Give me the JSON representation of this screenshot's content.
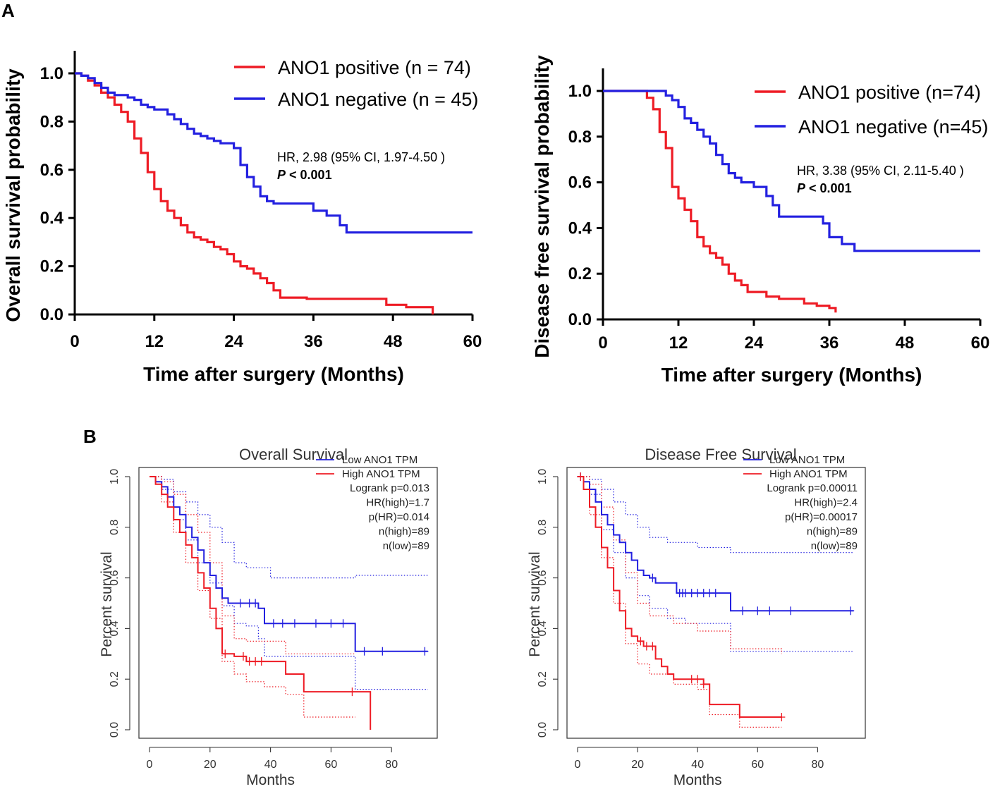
{
  "figure": {
    "panel_a_label": "A",
    "panel_b_label": "B"
  },
  "chart_data": [
    {
      "id": "A1",
      "type": "line",
      "subtype": "kaplan-meier",
      "title": "",
      "xlabel": "Time after surgery (Months)",
      "ylabel": "Overall survival probability",
      "xlim": [
        0,
        60
      ],
      "ylim": [
        0,
        1.0
      ],
      "xticks": [
        "0",
        "12",
        "24",
        "36",
        "48",
        "60"
      ],
      "yticks": [
        "0.0",
        "0.2",
        "0.4",
        "0.6",
        "0.8",
        "1.0"
      ],
      "legend_position": "top-right",
      "stats": {
        "hr_text": "HR, 2.98 (95% CI, 1.97-4.50 )",
        "p_label": "P",
        "p_value": " < 0.001"
      },
      "series": [
        {
          "name": "ANO1 positive (n = 74)",
          "color": "#ee1c25",
          "x": [
            0,
            1,
            2,
            3,
            4,
            5,
            6,
            7,
            8,
            9,
            10,
            11,
            12,
            13,
            14,
            15,
            16,
            17,
            18,
            19,
            20,
            21,
            22,
            23,
            24,
            25,
            26,
            27,
            28,
            29,
            30,
            31,
            35,
            40,
            44,
            47,
            50,
            54
          ],
          "y": [
            1.0,
            0.99,
            0.97,
            0.95,
            0.92,
            0.9,
            0.87,
            0.84,
            0.8,
            0.73,
            0.67,
            0.59,
            0.52,
            0.47,
            0.43,
            0.4,
            0.37,
            0.34,
            0.32,
            0.31,
            0.3,
            0.28,
            0.27,
            0.25,
            0.22,
            0.2,
            0.19,
            0.17,
            0.15,
            0.13,
            0.1,
            0.07,
            0.065,
            0.065,
            0.065,
            0.04,
            0.03,
            0.0
          ]
        },
        {
          "name": "ANO1 negative (n = 45)",
          "color": "#2320e0",
          "x": [
            0,
            1,
            2,
            3,
            4,
            5,
            6,
            7,
            8,
            9,
            10,
            11,
            12,
            13,
            14,
            15,
            16,
            17,
            18,
            19,
            20,
            21,
            22,
            23,
            24,
            25,
            26,
            27,
            28,
            29,
            30,
            32,
            34,
            36,
            38,
            40,
            41,
            44,
            60
          ],
          "y": [
            1.0,
            0.99,
            0.98,
            0.96,
            0.94,
            0.92,
            0.91,
            0.91,
            0.9,
            0.89,
            0.87,
            0.86,
            0.85,
            0.85,
            0.83,
            0.81,
            0.79,
            0.77,
            0.75,
            0.74,
            0.73,
            0.72,
            0.71,
            0.71,
            0.69,
            0.62,
            0.57,
            0.53,
            0.49,
            0.47,
            0.46,
            0.46,
            0.46,
            0.43,
            0.41,
            0.37,
            0.34,
            0.34,
            0.34
          ]
        }
      ]
    },
    {
      "id": "A2",
      "type": "line",
      "subtype": "kaplan-meier",
      "title": "",
      "xlabel": "Time after surgery (Months)",
      "ylabel": "Disease free survival probability",
      "xlim": [
        0,
        60
      ],
      "ylim": [
        0,
        1.0
      ],
      "xticks": [
        "0",
        "12",
        "24",
        "36",
        "48",
        "60"
      ],
      "yticks": [
        "0.0",
        "0.2",
        "0.4",
        "0.6",
        "0.8",
        "1.0"
      ],
      "legend_position": "top-right",
      "stats": {
        "hr_text": "HR, 3.38 (95% CI, 2.11-5.40 )",
        "p_label": "P",
        "p_value": " < 0.001"
      },
      "series": [
        {
          "name": "ANO1 positive (n=74)",
          "color": "#ee1c25",
          "x": [
            0,
            6,
            7,
            8,
            9,
            10,
            11,
            12,
            13,
            14,
            15,
            16,
            17,
            18,
            19,
            20,
            21,
            22,
            23,
            24,
            26,
            28,
            30,
            32,
            34,
            36,
            37
          ],
          "y": [
            1.0,
            1.0,
            0.97,
            0.92,
            0.82,
            0.75,
            0.58,
            0.53,
            0.48,
            0.43,
            0.36,
            0.32,
            0.29,
            0.27,
            0.24,
            0.2,
            0.17,
            0.15,
            0.12,
            0.12,
            0.1,
            0.09,
            0.09,
            0.07,
            0.06,
            0.05,
            0.03
          ]
        },
        {
          "name": "ANO1 negative (n=45)",
          "color": "#2320e0",
          "x": [
            0,
            9,
            10,
            11,
            12,
            13,
            14,
            15,
            16,
            17,
            18,
            19,
            20,
            21,
            22,
            24,
            26,
            27,
            28,
            30,
            32,
            34,
            35,
            36,
            38,
            40,
            45,
            60
          ],
          "y": [
            1.0,
            1.0,
            0.98,
            0.96,
            0.93,
            0.88,
            0.86,
            0.83,
            0.8,
            0.77,
            0.72,
            0.68,
            0.64,
            0.62,
            0.6,
            0.58,
            0.54,
            0.5,
            0.45,
            0.45,
            0.45,
            0.45,
            0.42,
            0.36,
            0.33,
            0.3,
            0.3,
            0.3
          ]
        }
      ]
    },
    {
      "id": "B1",
      "type": "line",
      "subtype": "kaplan-meier",
      "title": "Overall Survival",
      "xlabel": "Months",
      "ylabel": "Percent survival",
      "xlim": [
        0,
        92
      ],
      "ylim": [
        0,
        1.0
      ],
      "xticks": [
        "0",
        "20",
        "40",
        "60",
        "80"
      ],
      "yticks": [
        "0.0",
        "0.2",
        "0.4",
        "0.6",
        "0.8",
        "1.0"
      ],
      "legend_position": "top-right",
      "stats_lines": [
        "Logrank p=0.013",
        "HR(high)=1.7",
        "p(HR)=0.014",
        "n(high)=89",
        "n(low)=89"
      ],
      "series": [
        {
          "name": "Low ANO1 TPM",
          "color": "#2320e0",
          "x": [
            0,
            2,
            4,
            6,
            8,
            10,
            12,
            14,
            16,
            18,
            20,
            22,
            24,
            26,
            28,
            30,
            36,
            38,
            45,
            55,
            67,
            68,
            72,
            92
          ],
          "y": [
            1.0,
            0.98,
            0.96,
            0.92,
            0.88,
            0.85,
            0.8,
            0.76,
            0.71,
            0.66,
            0.61,
            0.56,
            0.52,
            0.5,
            0.5,
            0.5,
            0.48,
            0.42,
            0.42,
            0.42,
            0.42,
            0.31,
            0.31,
            0.31
          ],
          "censor_x": [
            30,
            33,
            35,
            41,
            44,
            48,
            55,
            60,
            64,
            71,
            77,
            91
          ]
        },
        {
          "name": "High ANO1 TPM",
          "color": "#ee1c25",
          "x": [
            0,
            2,
            4,
            6,
            8,
            10,
            12,
            14,
            16,
            18,
            20,
            22,
            24,
            28,
            32,
            38,
            45,
            51,
            60,
            72,
            73
          ],
          "y": [
            1.0,
            0.97,
            0.93,
            0.88,
            0.83,
            0.78,
            0.73,
            0.68,
            0.62,
            0.56,
            0.48,
            0.4,
            0.3,
            0.29,
            0.27,
            0.27,
            0.22,
            0.15,
            0.15,
            0.15,
            0.0
          ],
          "censor_x": [
            25,
            31,
            33,
            35,
            37,
            67
          ]
        },
        {
          "name": "Low upper CI",
          "color": "#2320e0",
          "dashed": true,
          "x": [
            0,
            4,
            8,
            12,
            16,
            20,
            24,
            28,
            32,
            36,
            40,
            50,
            68,
            92
          ],
          "y": [
            1.0,
            0.99,
            0.94,
            0.9,
            0.85,
            0.8,
            0.74,
            0.66,
            0.64,
            0.64,
            0.6,
            0.6,
            0.61,
            0.61
          ]
        },
        {
          "name": "Low lower CI",
          "color": "#2320e0",
          "dashed": true,
          "x": [
            0,
            4,
            8,
            12,
            16,
            20,
            24,
            28,
            32,
            36,
            38,
            40,
            68,
            92
          ],
          "y": [
            1.0,
            0.95,
            0.83,
            0.75,
            0.66,
            0.58,
            0.49,
            0.42,
            0.41,
            0.36,
            0.29,
            0.29,
            0.16,
            0.16
          ]
        },
        {
          "name": "High upper CI",
          "color": "#ee1c25",
          "dashed": true,
          "x": [
            0,
            4,
            8,
            12,
            16,
            20,
            24,
            28,
            32,
            38,
            45,
            60,
            68
          ],
          "y": [
            1.0,
            0.98,
            0.93,
            0.85,
            0.78,
            0.66,
            0.45,
            0.36,
            0.35,
            0.35,
            0.3,
            0.3,
            0.3
          ]
        },
        {
          "name": "High lower CI",
          "color": "#ee1c25",
          "dashed": true,
          "x": [
            0,
            4,
            8,
            12,
            16,
            20,
            24,
            28,
            32,
            38,
            45,
            51,
            60,
            68
          ],
          "y": [
            1.0,
            0.9,
            0.78,
            0.66,
            0.55,
            0.44,
            0.27,
            0.22,
            0.19,
            0.17,
            0.14,
            0.05,
            0.05,
            0.05
          ]
        }
      ]
    },
    {
      "id": "B2",
      "type": "line",
      "subtype": "kaplan-meier",
      "title": "Disease Free Survival",
      "xlabel": "Months",
      "ylabel": "Percent survival",
      "xlim": [
        0,
        92
      ],
      "ylim": [
        0,
        1.0
      ],
      "xticks": [
        "0",
        "20",
        "40",
        "60",
        "80"
      ],
      "yticks": [
        "0.0",
        "0.2",
        "0.4",
        "0.6",
        "0.8",
        "1.0"
      ],
      "legend_position": "top-right",
      "stats_lines": [
        "Logrank p=0.00011",
        "HR(high)=2.4",
        "p(HR)=0.00017",
        "n(high)=89",
        "n(low)=89"
      ],
      "series": [
        {
          "name": "Low ANO1 TPM",
          "color": "#2320e0",
          "x": [
            0,
            2,
            4,
            6,
            8,
            10,
            12,
            14,
            16,
            18,
            20,
            22,
            24,
            26,
            28,
            33,
            51,
            92
          ],
          "y": [
            1.0,
            0.98,
            0.95,
            0.9,
            0.85,
            0.81,
            0.77,
            0.74,
            0.7,
            0.67,
            0.63,
            0.61,
            0.6,
            0.58,
            0.58,
            0.54,
            0.47,
            0.47
          ],
          "censor_x": [
            1,
            25,
            34,
            35,
            36,
            38,
            40,
            42,
            44,
            46,
            55,
            60,
            64,
            71,
            91
          ]
        },
        {
          "name": "High ANO1 TPM",
          "color": "#ee1c25",
          "x": [
            0,
            2,
            4,
            6,
            8,
            10,
            12,
            14,
            16,
            18,
            20,
            22,
            24,
            26,
            28,
            30,
            32,
            35,
            42,
            44,
            54,
            68
          ],
          "y": [
            1.0,
            0.95,
            0.88,
            0.8,
            0.72,
            0.64,
            0.55,
            0.47,
            0.4,
            0.37,
            0.35,
            0.33,
            0.33,
            0.28,
            0.25,
            0.22,
            0.2,
            0.2,
            0.18,
            0.1,
            0.05,
            0.05
          ],
          "censor_x": [
            1,
            21,
            23,
            25,
            38,
            40,
            42,
            68
          ]
        },
        {
          "name": "Low upper CI",
          "color": "#2320e0",
          "dashed": true,
          "x": [
            0,
            4,
            8,
            12,
            16,
            20,
            24,
            30,
            40,
            51,
            92
          ],
          "y": [
            1.0,
            0.99,
            0.95,
            0.9,
            0.85,
            0.8,
            0.76,
            0.74,
            0.72,
            0.7,
            0.7
          ]
        },
        {
          "name": "Low lower CI",
          "color": "#2320e0",
          "dashed": true,
          "x": [
            0,
            4,
            8,
            12,
            16,
            20,
            24,
            30,
            36,
            40,
            51,
            92
          ],
          "y": [
            1.0,
            0.93,
            0.79,
            0.7,
            0.6,
            0.53,
            0.48,
            0.44,
            0.42,
            0.42,
            0.31,
            0.31
          ]
        },
        {
          "name": "High upper CI",
          "color": "#ee1c25",
          "dashed": true,
          "x": [
            0,
            4,
            8,
            12,
            16,
            20,
            24,
            32,
            40,
            51,
            68
          ],
          "y": [
            1.0,
            0.97,
            0.88,
            0.75,
            0.62,
            0.5,
            0.45,
            0.42,
            0.39,
            0.32,
            0.3
          ]
        },
        {
          "name": "High lower CI",
          "color": "#ee1c25",
          "dashed": true,
          "x": [
            0,
            4,
            8,
            12,
            16,
            20,
            24,
            32,
            40,
            44,
            54,
            68
          ],
          "y": [
            1.0,
            0.85,
            0.68,
            0.5,
            0.34,
            0.26,
            0.22,
            0.18,
            0.16,
            0.06,
            0.01,
            0.01
          ]
        }
      ]
    }
  ]
}
